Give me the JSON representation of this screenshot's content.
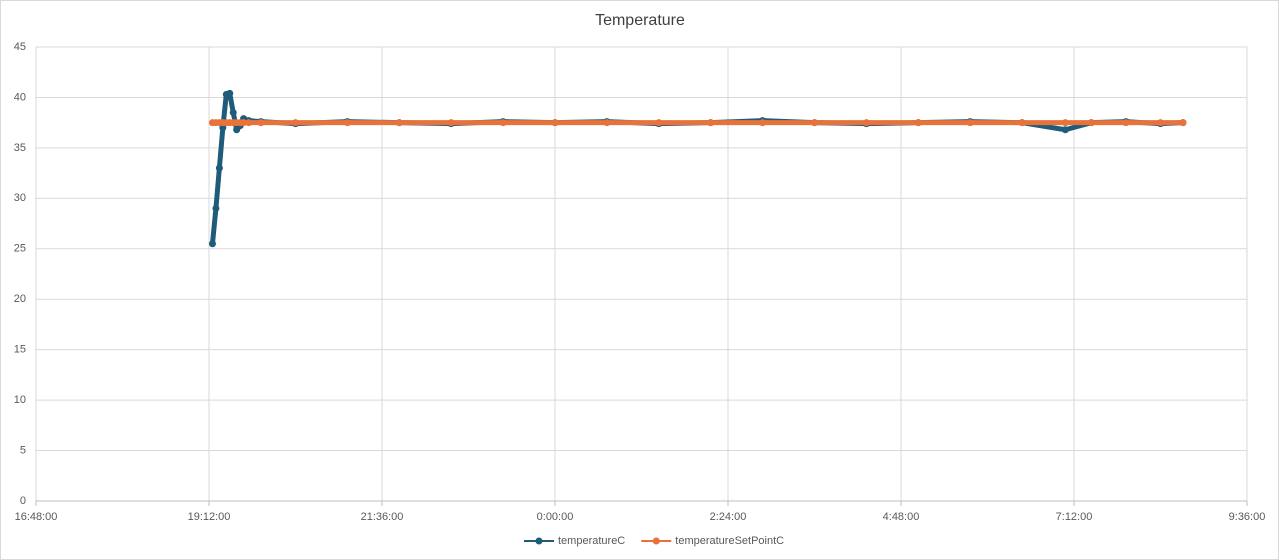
{
  "chart_data": {
    "type": "line",
    "title": "Temperature",
    "x": [
      0.802,
      0.804,
      0.806,
      0.808,
      0.81,
      0.812,
      0.814,
      0.816,
      0.818,
      0.82,
      0.823,
      0.83,
      0.85,
      0.88,
      0.91,
      0.94,
      0.97,
      1.0,
      1.03,
      1.06,
      1.09,
      1.12,
      1.15,
      1.18,
      1.21,
      1.24,
      1.27,
      1.295,
      1.31,
      1.33,
      1.35,
      1.363
    ],
    "series": [
      {
        "name": "temperatureC",
        "color": "#1f5c7a",
        "values": [
          25.5,
          29,
          33,
          37,
          40.3,
          40.4,
          38.5,
          36.8,
          37.2,
          37.9,
          37.7,
          37.6,
          37.4,
          37.6,
          37.5,
          37.4,
          37.6,
          37.5,
          37.6,
          37.4,
          37.5,
          37.7,
          37.5,
          37.4,
          37.5,
          37.6,
          37.5,
          36.8,
          37.5,
          37.6,
          37.4,
          37.5
        ]
      },
      {
        "name": "temperatureSetPointC",
        "color": "#e8733a",
        "values": [
          37.5,
          37.5,
          37.5,
          37.5,
          37.5,
          37.5,
          37.5,
          37.5,
          37.5,
          37.5,
          37.5,
          37.5,
          37.5,
          37.5,
          37.5,
          37.5,
          37.5,
          37.5,
          37.5,
          37.5,
          37.5,
          37.5,
          37.5,
          37.5,
          37.5,
          37.5,
          37.5,
          37.5,
          37.5,
          37.5,
          37.5,
          37.5
        ]
      }
    ],
    "xlim": [
      0.7,
      1.4
    ],
    "xticks": [
      {
        "value": 0.7,
        "label": "16:48:00"
      },
      {
        "value": 0.8,
        "label": "19:12:00"
      },
      {
        "value": 0.9,
        "label": "21:36:00"
      },
      {
        "value": 1.0,
        "label": "0:00:00"
      },
      {
        "value": 1.1,
        "label": "2:24:00"
      },
      {
        "value": 1.2,
        "label": "4:48:00"
      },
      {
        "value": 1.3,
        "label": "7:12:00"
      },
      {
        "value": 1.4,
        "label": "9:36:00"
      }
    ],
    "ylim": [
      0,
      45
    ],
    "yticks": [
      0,
      5,
      10,
      15,
      20,
      25,
      30,
      35,
      40,
      45
    ],
    "grid": true,
    "legend": "bottom"
  }
}
